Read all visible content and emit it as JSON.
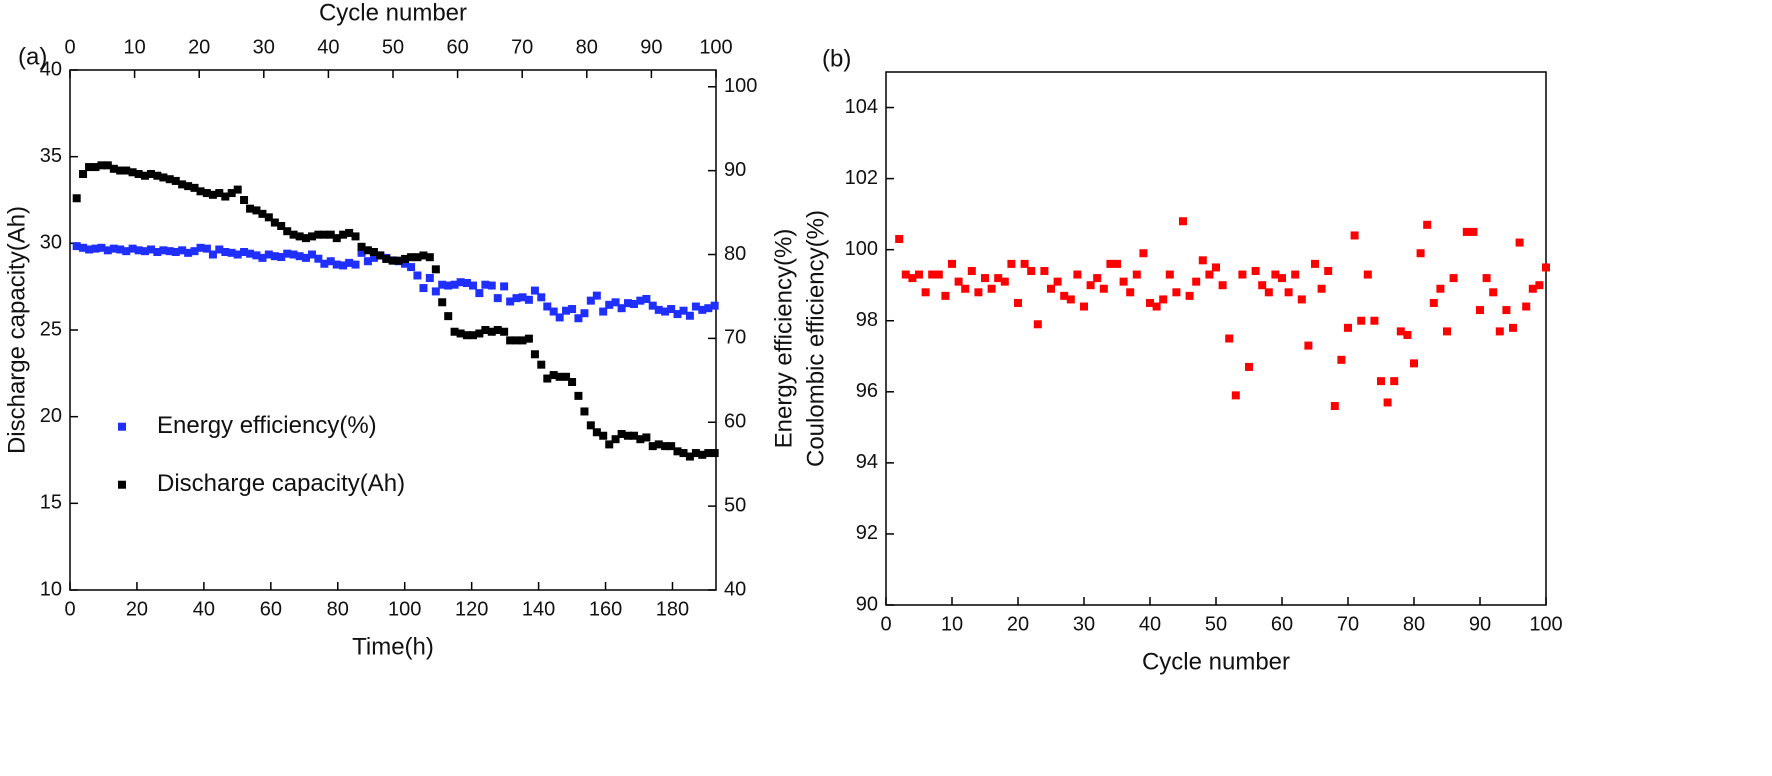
{
  "chart_data": [
    {
      "type": "scatter",
      "panel_label": "(a)",
      "xlabel": "Time(h)",
      "ylabel": "Discharge capacity(Ah)",
      "x2label": "Cycle number",
      "xlim": [
        0,
        193
      ],
      "xticks": [
        0,
        20,
        40,
        60,
        80,
        100,
        120,
        140,
        160,
        180
      ],
      "x2lim": [
        0,
        100
      ],
      "x2ticks": [
        0,
        10,
        20,
        30,
        40,
        50,
        60,
        70,
        80,
        90,
        100
      ],
      "ylim": [
        10,
        40
      ],
      "yticks": [
        10,
        15,
        20,
        25,
        30,
        35,
        40
      ],
      "y2lim": [
        40,
        102
      ],
      "y2ticks": [
        40,
        50,
        60,
        70,
        80,
        90,
        100
      ],
      "legend": "center left",
      "series": [
        {
          "name": "Energy efficiency(%)",
          "color": "#1f2fff",
          "axis": "y2",
          "x": [
            2.0,
            3.9,
            5.7,
            7.6,
            9.4,
            11.3,
            13.1,
            15.0,
            16.8,
            18.7,
            20.5,
            22.4,
            24.2,
            26.1,
            27.9,
            29.8,
            31.6,
            33.5,
            35.3,
            37.2,
            39.0,
            40.9,
            42.7,
            44.6,
            46.4,
            48.3,
            50.1,
            52.0,
            53.8,
            55.7,
            57.5,
            59.4,
            61.2,
            63.1,
            64.9,
            66.8,
            68.6,
            70.5,
            72.3,
            74.2,
            76.0,
            77.9,
            79.7,
            81.6,
            83.4,
            85.3,
            87.1,
            89.0,
            90.8,
            92.7,
            94.5,
            96.4,
            98.2,
            100.1,
            101.9,
            103.8,
            105.6,
            107.5,
            109.3,
            111.2,
            113.0,
            114.9,
            116.7,
            118.6,
            120.4,
            122.3,
            124.1,
            126.0,
            127.8,
            129.7,
            131.5,
            133.4,
            135.2,
            137.1,
            138.9,
            140.8,
            142.6,
            144.5,
            146.3,
            148.2,
            150.0,
            151.9,
            153.7,
            155.6,
            157.4,
            159.3,
            161.1,
            163.0,
            164.8,
            166.7,
            168.5,
            170.4,
            172.2,
            174.1,
            175.9,
            177.8,
            179.6,
            181.5,
            183.3,
            185.2,
            187.0,
            188.9,
            190.7,
            192.6
          ],
          "values": [
            81.0,
            80.8,
            80.6,
            80.7,
            80.8,
            80.5,
            80.7,
            80.6,
            80.4,
            80.7,
            80.5,
            80.4,
            80.6,
            80.3,
            80.5,
            80.4,
            80.3,
            80.5,
            80.2,
            80.4,
            80.8,
            80.7,
            80.0,
            80.6,
            80.3,
            80.2,
            80.0,
            80.3,
            80.1,
            79.9,
            79.6,
            80.0,
            79.8,
            79.7,
            80.1,
            80.0,
            79.8,
            79.6,
            80.0,
            79.5,
            78.9,
            79.2,
            78.8,
            78.7,
            79.0,
            78.8,
            80.2,
            79.2,
            79.6,
            79.9,
            79.6,
            79.3,
            79.2,
            78.9,
            78.5,
            77.5,
            76.0,
            77.2,
            75.6,
            76.4,
            76.3,
            76.4,
            76.7,
            76.6,
            76.3,
            75.4,
            76.4,
            76.3,
            74.8,
            76.2,
            74.4,
            74.8,
            74.9,
            74.6,
            75.7,
            74.9,
            73.8,
            73.2,
            72.5,
            73.3,
            73.5,
            72.4,
            73.0,
            74.5,
            75.1,
            73.2,
            74.0,
            74.3,
            73.6,
            74.2,
            74.1,
            74.5,
            74.7,
            73.9,
            73.4,
            73.2,
            73.5,
            72.9,
            73.3,
            72.7,
            73.8,
            73.4,
            73.6,
            73.9
          ]
        },
        {
          "name": "Discharge capacity(Ah)",
          "color": "#000000",
          "x": [
            2.0,
            3.9,
            5.7,
            7.6,
            9.4,
            11.3,
            13.1,
            15.0,
            16.8,
            18.7,
            20.5,
            22.4,
            24.2,
            26.1,
            27.9,
            29.8,
            31.6,
            33.5,
            35.3,
            37.2,
            39.0,
            40.9,
            42.7,
            44.6,
            46.4,
            48.3,
            50.1,
            52.0,
            53.8,
            55.7,
            57.5,
            59.4,
            61.2,
            63.1,
            64.9,
            66.8,
            68.6,
            70.5,
            72.3,
            74.2,
            76.0,
            77.9,
            79.7,
            81.6,
            83.4,
            85.3,
            87.1,
            89.0,
            90.8,
            92.7,
            94.5,
            96.4,
            98.2,
            100.1,
            101.9,
            103.8,
            105.6,
            107.5,
            109.3,
            111.2,
            113.0,
            114.9,
            116.7,
            118.6,
            120.4,
            122.3,
            124.1,
            126.0,
            127.8,
            129.7,
            131.5,
            133.4,
            135.2,
            137.1,
            138.9,
            140.8,
            142.6,
            144.5,
            146.3,
            148.2,
            150.0,
            151.9,
            153.7,
            155.6,
            157.4,
            159.3,
            161.1,
            163.0,
            164.8,
            166.7,
            168.5,
            170.4,
            172.2,
            174.1,
            175.9,
            177.8,
            179.6,
            181.5,
            183.3,
            185.2,
            187.0,
            188.9,
            190.7,
            192.6
          ],
          "values": [
            32.6,
            34.0,
            34.4,
            34.4,
            34.5,
            34.5,
            34.3,
            34.2,
            34.2,
            34.1,
            34.0,
            33.9,
            34.0,
            33.9,
            33.8,
            33.7,
            33.6,
            33.4,
            33.3,
            33.2,
            33.0,
            32.9,
            32.8,
            32.9,
            32.7,
            32.9,
            33.1,
            32.5,
            32.0,
            31.9,
            31.7,
            31.5,
            31.2,
            31.0,
            30.7,
            30.5,
            30.4,
            30.3,
            30.4,
            30.5,
            30.5,
            30.5,
            30.3,
            30.5,
            30.6,
            30.4,
            29.8,
            29.6,
            29.5,
            29.3,
            29.1,
            29.0,
            29.0,
            29.1,
            29.2,
            29.2,
            29.3,
            29.2,
            28.5,
            26.6,
            25.8,
            24.9,
            24.8,
            24.7,
            24.7,
            24.8,
            25.0,
            24.9,
            25.0,
            24.9,
            24.4,
            24.4,
            24.4,
            24.5,
            23.6,
            23.0,
            22.2,
            22.4,
            22.3,
            22.3,
            22.0,
            21.2,
            20.3,
            19.5,
            19.1,
            18.9,
            18.4,
            18.7,
            19.0,
            18.9,
            18.9,
            18.7,
            18.8,
            18.3,
            18.4,
            18.3,
            18.3,
            18.0,
            17.9,
            17.7,
            17.9,
            17.8,
            17.9,
            17.9
          ]
        }
      ]
    },
    {
      "type": "scatter",
      "panel_label": "(b)",
      "xlabel": "Cycle number",
      "ylabel": [
        "Energy efficiency(%)",
        "Coulombic efficiency(%)"
      ],
      "xlim": [
        0,
        100
      ],
      "xticks": [
        0,
        10,
        20,
        30,
        40,
        50,
        60,
        70,
        80,
        90,
        100
      ],
      "ylim": [
        90,
        105
      ],
      "yticks": [
        90,
        92,
        94,
        96,
        98,
        100,
        102,
        104
      ],
      "series": [
        {
          "color": "#ff0000",
          "x": [
            2,
            3,
            4,
            5,
            6,
            7,
            8,
            9,
            10,
            11,
            12,
            13,
            14,
            15,
            16,
            17,
            18,
            19,
            20,
            21,
            22,
            23,
            24,
            25,
            26,
            27,
            28,
            29,
            30,
            31,
            32,
            33,
            34,
            35,
            36,
            37,
            38,
            39,
            40,
            41,
            42,
            43,
            44,
            45,
            46,
            47,
            48,
            49,
            50,
            51,
            52,
            53,
            54,
            55,
            56,
            57,
            58,
            59,
            60,
            61,
            62,
            63,
            64,
            65,
            66,
            67,
            68,
            69,
            70,
            71,
            72,
            73,
            74,
            75,
            76,
            77,
            78,
            79,
            80,
            81,
            82,
            83,
            84,
            85,
            86,
            88,
            89,
            90,
            91,
            92,
            93,
            94,
            95,
            96,
            97,
            98,
            99,
            100
          ],
          "values": [
            100.3,
            99.3,
            99.2,
            99.3,
            98.8,
            99.3,
            99.3,
            98.7,
            99.6,
            99.1,
            98.9,
            99.4,
            98.8,
            99.2,
            98.9,
            99.2,
            99.1,
            99.6,
            98.5,
            99.6,
            99.4,
            97.9,
            99.4,
            98.9,
            99.1,
            98.7,
            98.6,
            99.3,
            98.4,
            99.0,
            99.2,
            98.9,
            99.6,
            99.6,
            99.1,
            98.8,
            99.3,
            99.9,
            98.5,
            98.4,
            98.6,
            99.3,
            98.8,
            100.8,
            98.7,
            99.1,
            99.7,
            99.3,
            99.5,
            99.0,
            97.5,
            95.9,
            99.3,
            96.7,
            99.4,
            99.0,
            98.8,
            99.3,
            99.2,
            98.8,
            99.3,
            98.6,
            97.3,
            99.6,
            98.9,
            99.4,
            95.6,
            96.9,
            97.8,
            100.4,
            98.0,
            99.3,
            98.0,
            96.3,
            95.7,
            96.3,
            97.7,
            97.6,
            96.8,
            99.9,
            100.7,
            98.5,
            98.9,
            97.7,
            99.2,
            100.5,
            100.5,
            98.3,
            99.2,
            98.8,
            97.7,
            98.3,
            97.8,
            100.2,
            98.4,
            98.9,
            99.0,
            99.5
          ]
        }
      ]
    }
  ]
}
